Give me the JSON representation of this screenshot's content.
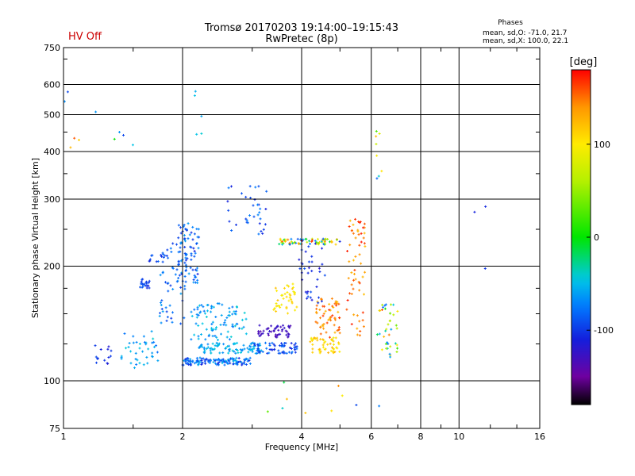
{
  "chart_data": {
    "type": "scatter",
    "title": "Tromsø 20170203 19:14:00–19:15:43",
    "subtitle": "RwPretec (8p)",
    "status_text": "HV Off",
    "stats": {
      "heading": "Phases",
      "line1": "mean, sd,O: -71.0, 21.7",
      "line2": "mean, sd,X: 100.0, 22.1"
    },
    "xlabel": "Frequency [MHz]",
    "ylabel": "Stationary phase Virtual Height [km]",
    "x_scale": "log",
    "y_scale": "log",
    "xlim": [
      1,
      16
    ],
    "ylim": [
      75,
      750
    ],
    "x_ticks": [
      1,
      2,
      4,
      6,
      8,
      10,
      16
    ],
    "y_ticks": [
      75,
      100,
      200,
      300,
      400,
      500,
      600,
      750
    ],
    "grid": true,
    "colorbar": {
      "label": "[deg]",
      "range": [
        -180,
        180
      ],
      "ticks": [
        100,
        0,
        -100
      ],
      "colormap": "rainbow"
    },
    "clusters": [
      {
        "f": [
          1.18,
          1.32
        ],
        "h": [
          108,
          126
        ],
        "phase": [
          -120,
          -90
        ],
        "n": 14
      },
      {
        "f": [
          1.4,
          1.75
        ],
        "h": [
          108,
          135
        ],
        "phase": [
          -80,
          -40
        ],
        "n": 40
      },
      {
        "f": [
          1.55,
          1.65
        ],
        "h": [
          175,
          185
        ],
        "phase": [
          -110,
          -85
        ],
        "n": 22
      },
      {
        "f": [
          1.6,
          1.85
        ],
        "h": [
          205,
          215
        ],
        "phase": [
          -110,
          -80
        ],
        "n": 14
      },
      {
        "f": [
          1.75,
          2.05
        ],
        "h": [
          140,
          240
        ],
        "phase": [
          -100,
          -60
        ],
        "n": 60
      },
      {
        "f": [
          1.95,
          2.2
        ],
        "h": [
          180,
          260
        ],
        "phase": [
          -110,
          -60
        ],
        "n": 70
      },
      {
        "f": [
          2.0,
          3.0
        ],
        "h": [
          110,
          115
        ],
        "phase": [
          -110,
          -50
        ],
        "n": 120
      },
      {
        "f": [
          2.2,
          3.2
        ],
        "h": [
          118,
          126
        ],
        "phase": [
          -70,
          -40
        ],
        "n": 90
      },
      {
        "f": [
          2.1,
          2.9
        ],
        "h": [
          128,
          160
        ],
        "phase": [
          -80,
          -40
        ],
        "n": 90
      },
      {
        "f": [
          3.0,
          3.9
        ],
        "h": [
          118,
          126
        ],
        "phase": [
          -110,
          -70
        ],
        "n": 60
      },
      {
        "f": [
          3.1,
          3.8
        ],
        "h": [
          130,
          140
        ],
        "phase": [
          -140,
          -120
        ],
        "n": 50
      },
      {
        "f": [
          3.4,
          3.9
        ],
        "h": [
          150,
          180
        ],
        "phase": [
          90,
          120
        ],
        "n": 40
      },
      {
        "f": [
          3.5,
          5.0
        ],
        "h": [
          228,
          236
        ],
        "phase": [
          -110,
          170
        ],
        "n": 70
      },
      {
        "f": [
          4.2,
          5.0
        ],
        "h": [
          118,
          130
        ],
        "phase": [
          90,
          130
        ],
        "n": 50
      },
      {
        "f": [
          4.3,
          5.0
        ],
        "h": [
          130,
          165
        ],
        "phase": [
          120,
          170
        ],
        "n": 60
      },
      {
        "f": [
          5.2,
          5.8
        ],
        "h": [
          130,
          270
        ],
        "phase": [
          120,
          175
        ],
        "n": 60
      },
      {
        "f": [
          6.2,
          7.0
        ],
        "h": [
          115,
          160
        ],
        "phase": [
          -80,
          160
        ],
        "n": 40
      },
      {
        "f": [
          3.9,
          4.6
        ],
        "h": [
          160,
          230
        ],
        "phase": [
          -120,
          -90
        ],
        "n": 35
      },
      {
        "f": [
          2.6,
          3.3
        ],
        "h": [
          240,
          330
        ],
        "phase": [
          -110,
          -70
        ],
        "n": 35
      },
      {
        "f": [
          1.0,
          1.5
        ],
        "h": [
          380,
          600
        ],
        "phase": [
          -110,
          160
        ],
        "n": 10
      },
      {
        "f": [
          2.0,
          2.3
        ],
        "h": [
          420,
          580
        ],
        "phase": [
          -60,
          -40
        ],
        "n": 5
      },
      {
        "f": [
          6.1,
          6.4
        ],
        "h": [
          330,
          460
        ],
        "phase": [
          -120,
          150
        ],
        "n": 8
      },
      {
        "f": [
          3.2,
          6.8
        ],
        "h": [
          80,
          100
        ],
        "phase": [
          -110,
          150
        ],
        "n": 10
      },
      {
        "f": [
          10.5,
          12.5
        ],
        "h": [
          185,
          310
        ],
        "phase": [
          -110,
          -100
        ],
        "n": 3
      }
    ]
  }
}
